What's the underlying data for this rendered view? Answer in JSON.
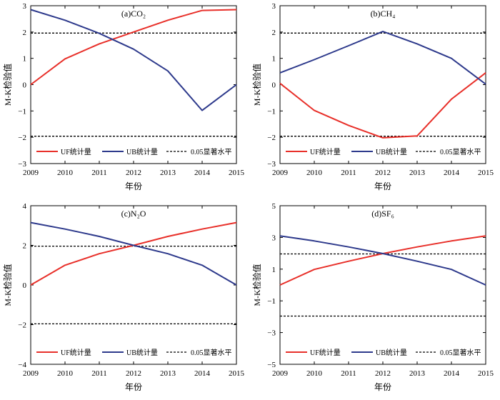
{
  "chart_data": [
    {
      "type": "line",
      "title": "(a)CO₂",
      "ylabel": "M-K检验值",
      "xlabel": "年份",
      "x": [
        2009,
        2010,
        2011,
        2012,
        2013,
        2014,
        2015
      ],
      "ylim": [
        -3,
        3
      ],
      "yticks": [
        "−3",
        "−2",
        "−1",
        "0",
        "1",
        "2",
        "3"
      ],
      "series": [
        {
          "name": "UF统计量",
          "color": "#e8302a",
          "values": [
            0,
            0.98,
            1.55,
            2.0,
            2.45,
            2.82,
            2.85
          ]
        },
        {
          "name": "UB统计量",
          "color": "#2e3a8c",
          "values": [
            2.85,
            2.45,
            1.95,
            1.35,
            0.52,
            -0.98,
            0
          ]
        }
      ],
      "significance": {
        "name": "0.05显著水平",
        "values": [
          1.96,
          -1.96
        ]
      }
    },
    {
      "type": "line",
      "title": "(b)CH₄",
      "ylabel": "M-K检验值",
      "xlabel": "年份",
      "x": [
        2009,
        2010,
        2011,
        2012,
        2013,
        2014,
        2015
      ],
      "ylim": [
        -3,
        3
      ],
      "yticks": [
        "−3",
        "−2",
        "−1",
        "0",
        "1",
        "2",
        "3"
      ],
      "series": [
        {
          "name": "UF统计量",
          "color": "#e8302a",
          "values": [
            0.05,
            -0.98,
            -1.55,
            -2.02,
            -1.95,
            -0.55,
            0.45
          ]
        },
        {
          "name": "UB统计量",
          "color": "#2e3a8c",
          "values": [
            0.45,
            0.95,
            1.48,
            2.02,
            1.55,
            1.0,
            0.02
          ]
        }
      ],
      "significance": {
        "name": "0.05显著水平",
        "values": [
          1.96,
          -1.96
        ]
      }
    },
    {
      "type": "line",
      "title": "(c)N₂O",
      "ylabel": "M-K检验值",
      "xlabel": "年份",
      "x": [
        2009,
        2010,
        2011,
        2012,
        2013,
        2014,
        2015
      ],
      "ylim": [
        -4,
        4
      ],
      "yticks": [
        "−4",
        "−2",
        "0",
        "2",
        "4"
      ],
      "series": [
        {
          "name": "UF统计量",
          "color": "#e8302a",
          "values": [
            0,
            1.0,
            1.58,
            2.0,
            2.45,
            2.82,
            3.15
          ]
        },
        {
          "name": "UB统计量",
          "color": "#2e3a8c",
          "values": [
            3.15,
            2.82,
            2.45,
            2.0,
            1.58,
            1.0,
            0
          ]
        }
      ],
      "significance": {
        "name": "0.05显著水平",
        "values": [
          1.96,
          -1.96
        ]
      }
    },
    {
      "type": "line",
      "title": "(d)SF₆",
      "ylabel": "M-K检验值",
      "xlabel": "年份",
      "x": [
        2009,
        2010,
        2011,
        2012,
        2013,
        2014,
        2015
      ],
      "ylim": [
        -5,
        5
      ],
      "yticks": [
        "−5",
        "−3",
        "−1",
        "1",
        "3",
        "5"
      ],
      "series": [
        {
          "name": "UF统计量",
          "color": "#e8302a",
          "values": [
            0,
            0.98,
            1.5,
            1.98,
            2.4,
            2.78,
            3.1
          ]
        },
        {
          "name": "UB统计量",
          "color": "#2e3a8c",
          "values": [
            3.1,
            2.78,
            2.4,
            1.98,
            1.5,
            0.98,
            0
          ]
        }
      ],
      "significance": {
        "name": "0.05显著水平",
        "values": [
          1.96,
          -1.96
        ]
      }
    }
  ]
}
